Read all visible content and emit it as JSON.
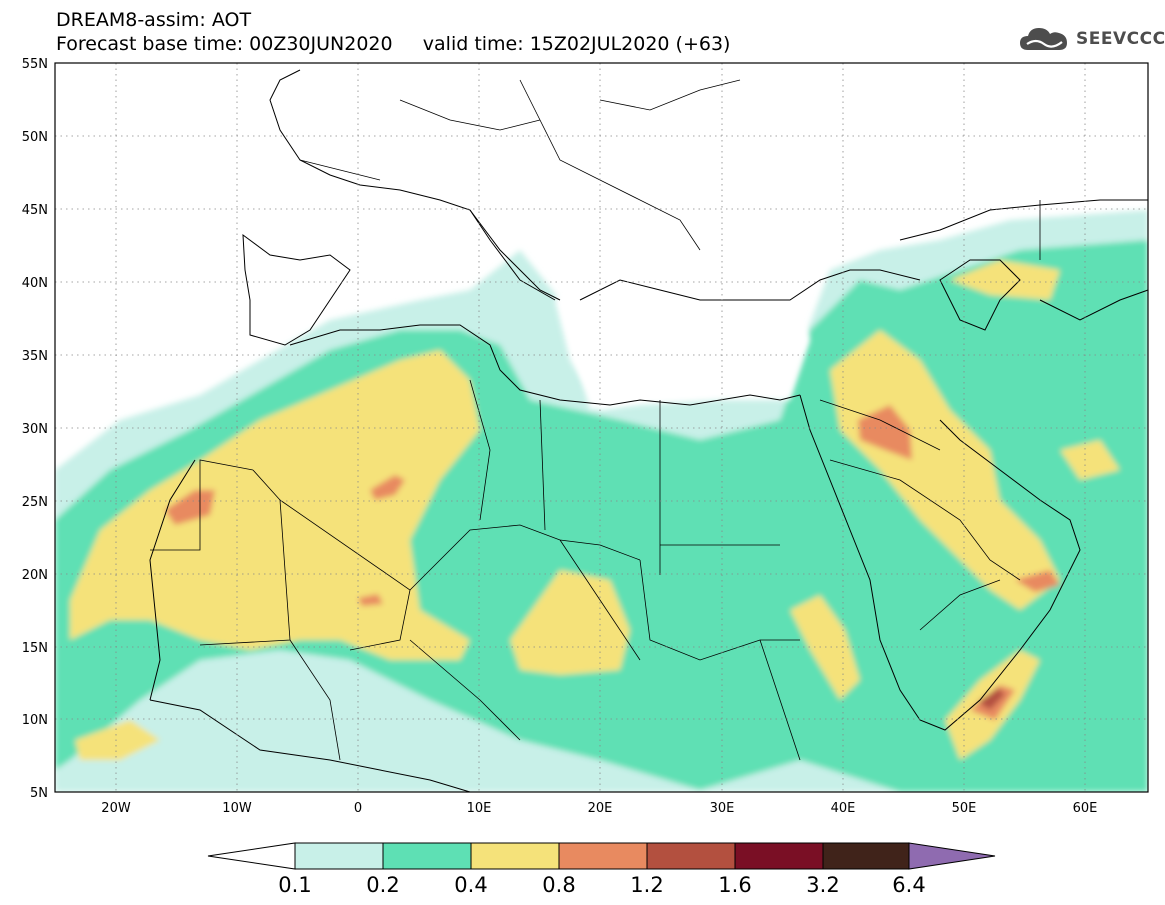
{
  "header": {
    "line1": "DREAM8-assim: AOT",
    "line2": "Forecast base time: 00Z30JUN2020     valid time: 15Z02JUL2020 (+63)"
  },
  "logo": {
    "text": "SEEVCCC",
    "icon": "cloud-icon"
  },
  "map": {
    "lon_range": [
      -25,
      65
    ],
    "lat_range": [
      5,
      55
    ],
    "lon_ticks": [
      "20W",
      "10W",
      "0",
      "10E",
      "20E",
      "30E",
      "40E",
      "50E",
      "60E"
    ],
    "lat_ticks": [
      "55N",
      "50N",
      "45N",
      "40N",
      "35N",
      "30N",
      "25N",
      "20N",
      "15N",
      "10N",
      "5N"
    ],
    "grid": "dotted"
  },
  "colorbar": {
    "levels": [
      "0.1",
      "0.2",
      "0.4",
      "0.8",
      "1.2",
      "1.6",
      "3.2",
      "6.4"
    ],
    "colors": [
      "#c8f0e8",
      "#5ee0b4",
      "#f5e27a",
      "#e88a60",
      "#b3503f",
      "#7a0f25",
      "#40231a",
      "#8f6bb0"
    ]
  }
}
